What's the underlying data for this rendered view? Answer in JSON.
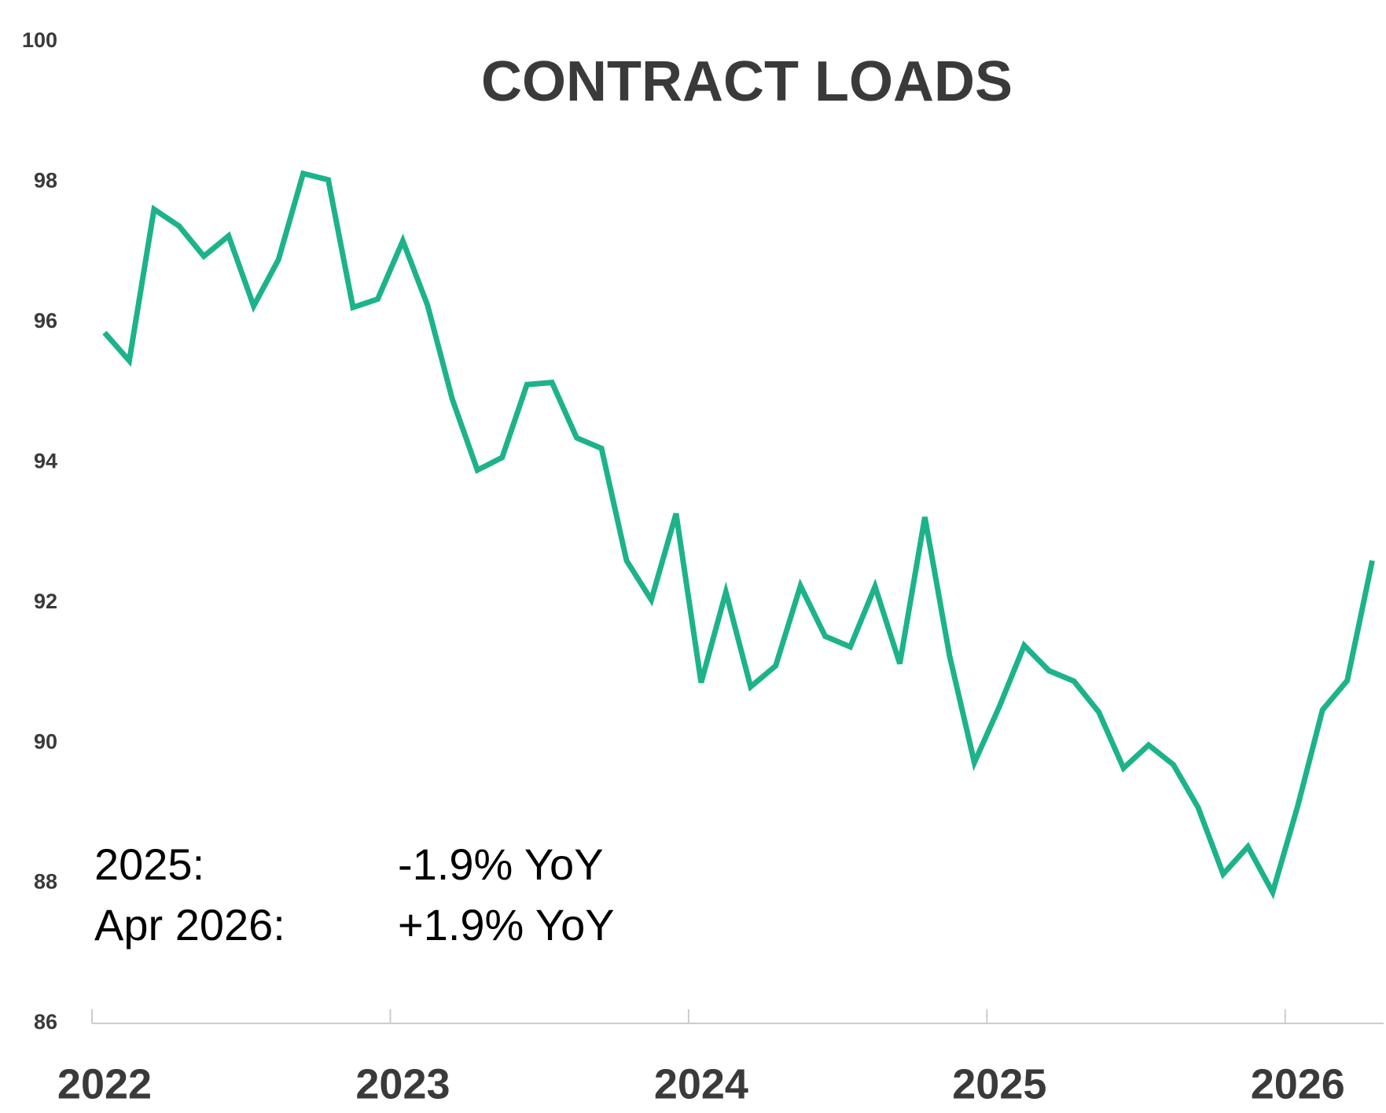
{
  "chart_data": {
    "type": "line",
    "title": "CONTRACT LOADS",
    "x": [
      2022.042,
      2022.125,
      2022.208,
      2022.292,
      2022.375,
      2022.458,
      2022.542,
      2022.625,
      2022.708,
      2022.792,
      2022.875,
      2022.958,
      2023.042,
      2023.125,
      2023.208,
      2023.292,
      2023.375,
      2023.458,
      2023.542,
      2023.625,
      2023.708,
      2023.792,
      2023.875,
      2023.958,
      2024.042,
      2024.125,
      2024.208,
      2024.292,
      2024.375,
      2024.458,
      2024.542,
      2024.625,
      2024.708,
      2024.792,
      2024.875,
      2024.958,
      2025.042,
      2025.125,
      2025.208,
      2025.292,
      2025.375,
      2025.458,
      2025.542,
      2025.625,
      2025.708,
      2025.792,
      2025.875,
      2025.958,
      2026.042,
      2026.125,
      2026.208,
      2026.292
    ],
    "series": [
      {
        "name": "Contract Loads",
        "color": "#1db38a",
        "values": [
          95.85,
          95.45,
          97.61,
          97.37,
          96.94,
          97.23,
          96.23,
          96.89,
          98.12,
          98.03,
          96.21,
          96.33,
          97.16,
          96.24,
          94.9,
          93.89,
          94.07,
          95.11,
          95.14,
          94.35,
          94.2,
          92.6,
          92.04,
          93.27,
          90.86,
          92.15,
          90.8,
          91.1,
          92.24,
          91.52,
          91.37,
          92.23,
          91.13,
          93.22,
          91.24,
          89.72,
          90.52,
          91.39,
          91.03,
          90.88,
          90.44,
          89.64,
          89.97,
          89.69,
          89.08,
          88.13,
          88.52,
          87.87,
          89.1,
          90.47,
          90.89,
          92.6
        ]
      }
    ],
    "xlim": [
      2022,
      2026.33
    ],
    "xticks": [
      2022,
      2023,
      2024,
      2025,
      2026
    ],
    "ylim": [
      86,
      100
    ],
    "yticks": [
      86,
      88,
      90,
      92,
      94,
      96,
      98,
      100
    ],
    "annotations": [
      {
        "label": "2025:",
        "text": "-1.9% YoY"
      },
      {
        "label": "Apr 2026:",
        "text": "+1.9% YoY"
      }
    ]
  }
}
